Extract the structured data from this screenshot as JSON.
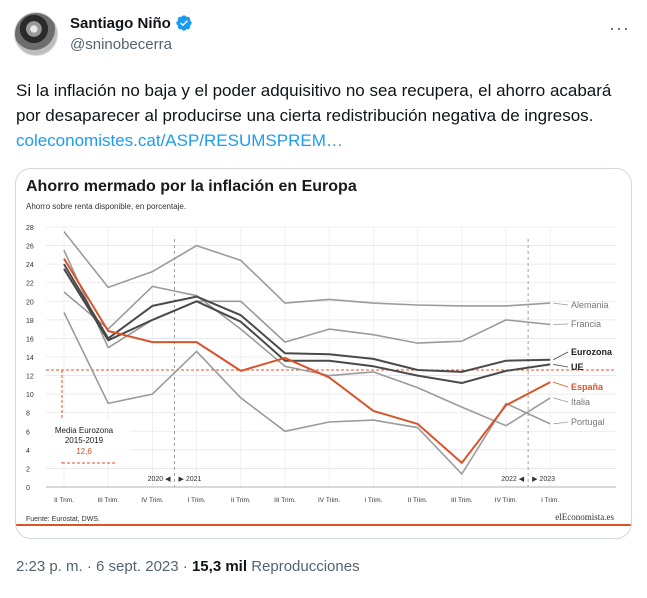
{
  "author": {
    "name": "Santiago Niño",
    "handle": "@sninobecerra"
  },
  "tweet": {
    "text": "Si la inflación no baja y el poder adquisitivo no sea recupera, el ahorro acabará por desaparecer al producirse una cierta redistribución negativa de ingresos. ",
    "link": "coleconomistes.cat/ASP/RESUMSPREM…"
  },
  "footer": {
    "time": "2:23 p. m.",
    "separator": " · ",
    "date": "6 sept. 2023",
    "views_count": "15,3 mil",
    "views_label": "Reproducciones"
  },
  "colors": {
    "link": "#1d9bf0",
    "verified": "#1d9bf0",
    "espana": "#d9532b",
    "dark": "#4a4a4a",
    "light": "#9b9b9b",
    "reference": "#d9532b"
  },
  "chart_data": {
    "type": "line",
    "title": "Ahorro mermado por la inflación en Europa",
    "subtitle": "Ahorro sobre renta disponible, en porcentaje.",
    "x": [
      "II Trim.",
      "III Trim.",
      "IV Trim.",
      "I Trim.",
      "II Trim.",
      "III Trim.",
      "IV Trim.",
      "I Trim.",
      "II Trim.",
      "III Trim.",
      "IV Trim.",
      "I Trim."
    ],
    "year_markers": [
      {
        "label": "2020",
        "direction": "left",
        "after_index": 2
      },
      {
        "label": "2021",
        "direction": "right",
        "after_index": 2
      },
      {
        "label": "2022",
        "direction": "left",
        "after_index": 10
      },
      {
        "label": "2023",
        "direction": "right",
        "after_index": 10
      }
    ],
    "ylim": [
      0,
      28
    ],
    "yticks": [
      0,
      2,
      4,
      6,
      8,
      10,
      12,
      14,
      16,
      18,
      20,
      22,
      24,
      26,
      28
    ],
    "series": [
      {
        "name": "Alemania",
        "style": "light",
        "values": [
          27.5,
          21.5,
          23.2,
          26.0,
          24.4,
          19.8,
          20.2,
          19.8,
          19.6,
          19.5,
          19.5,
          19.8
        ]
      },
      {
        "name": "Francia",
        "style": "light",
        "values": [
          25.5,
          15.0,
          18.0,
          20.0,
          20.0,
          15.6,
          17.0,
          16.4,
          15.5,
          15.7,
          18.0,
          17.5
        ]
      },
      {
        "name": "Eurozona",
        "style": "dark",
        "values": [
          24.0,
          16.0,
          19.5,
          20.5,
          18.5,
          14.4,
          14.3,
          13.8,
          12.6,
          12.4,
          13.6,
          13.7
        ]
      },
      {
        "name": "UE",
        "style": "dark",
        "values": [
          23.5,
          15.8,
          18.0,
          20.0,
          17.8,
          13.6,
          13.6,
          13.0,
          12.0,
          11.2,
          12.5,
          13.2
        ]
      },
      {
        "name": "España",
        "style": "espana",
        "values": [
          24.6,
          16.8,
          15.6,
          15.6,
          12.5,
          13.9,
          11.8,
          8.2,
          6.8,
          2.6,
          8.8,
          11.3
        ]
      },
      {
        "name": "Italia",
        "style": "light",
        "values": [
          21.0,
          17.0,
          21.6,
          20.6,
          17.0,
          13.0,
          12.0,
          12.4,
          10.7,
          8.6,
          6.6,
          9.6
        ]
      },
      {
        "name": "Portugal",
        "style": "light",
        "values": [
          18.8,
          9.0,
          10.0,
          14.6,
          9.6,
          6.0,
          7.0,
          7.2,
          6.4,
          1.4,
          9.0,
          6.8
        ]
      }
    ],
    "reference_line": {
      "label": "Media Eurozona\n2015-2019",
      "value": 12.6,
      "value_label": "12,6"
    },
    "source": "Fuente: Eurostat, DWS.",
    "brand": "elEconomista.es",
    "grid": true,
    "legend": "right-end-labels"
  }
}
